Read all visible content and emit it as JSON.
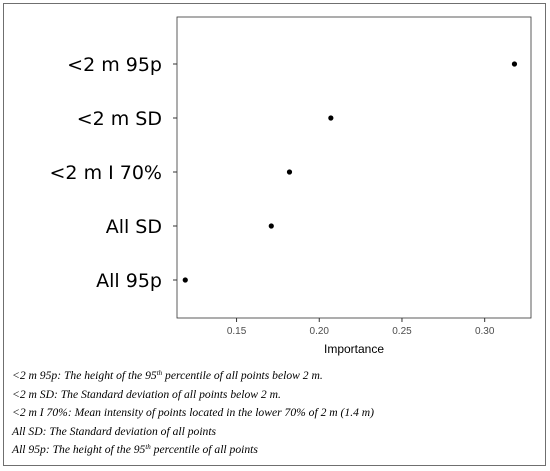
{
  "chart_data": {
    "type": "scatter",
    "categories": [
      "<2 m 95p",
      "<2 m SD",
      "<2 m I 70%",
      "All SD",
      "All 95p"
    ],
    "values": [
      0.318,
      0.207,
      0.182,
      0.171,
      0.119
    ],
    "xlabel": "Importance",
    "ylabel": "",
    "xlim": [
      0.114,
      0.328
    ],
    "xticks": [
      0.15,
      0.2,
      0.25,
      0.3
    ],
    "xtick_labels": [
      "0.15",
      "0.20",
      "0.25",
      "0.30"
    ],
    "grid": false,
    "point_color": "#000000",
    "panel_color": "#ffffff"
  },
  "caption": [
    {
      "term": "<2 m 95p",
      "pre": ": The height of the 95",
      "sup": "th",
      "post": " percentile of all points below 2 m."
    },
    {
      "term": "<2 m SD",
      "pre": ": The Standard deviation of all points below 2 m.",
      "sup": "",
      "post": ""
    },
    {
      "term": "<2 m I 70%",
      "pre": ": Mean intensity of points located in the lower 70% of 2 m (1.4 m)",
      "sup": "",
      "post": ""
    },
    {
      "term": "All SD",
      "pre": ": The Standard deviation of all points",
      "sup": "",
      "post": ""
    },
    {
      "term": "All 95p",
      "pre": ": The height of the 95",
      "sup": "th",
      "post": " percentile of all points"
    }
  ]
}
